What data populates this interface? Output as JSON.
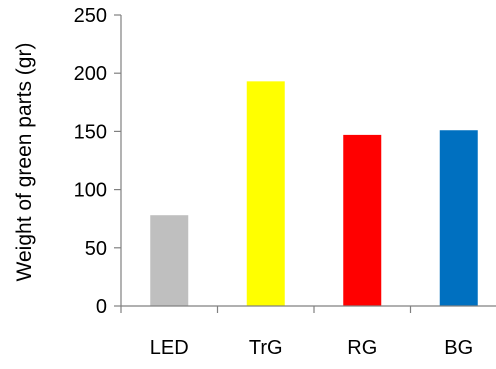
{
  "chart_data": {
    "type": "bar",
    "title": "",
    "xlabel": "",
    "ylabel": "Weight of green parts (gr)",
    "categories": [
      "LED",
      "TrG",
      "RG",
      "BG"
    ],
    "values": [
      78,
      193,
      147,
      151
    ],
    "colors": [
      "#bfbfbf",
      "#ffff00",
      "#ff0000",
      "#0070c0"
    ],
    "ylim": [
      0,
      250
    ],
    "yticks": [
      0,
      50,
      100,
      150,
      200,
      250
    ],
    "grid": false,
    "legend": "none"
  }
}
